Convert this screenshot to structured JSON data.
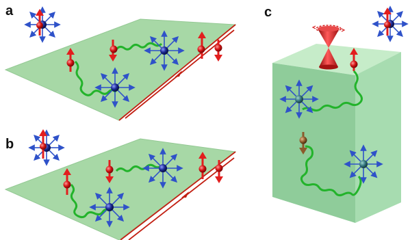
{
  "panels": [
    {
      "id": "a",
      "label": "a"
    },
    {
      "id": "b",
      "label": "b"
    },
    {
      "id": "c",
      "label": "c"
    }
  ],
  "colors": {
    "plane_green": "#a7d8a6",
    "plane_edge": "#8cc38c",
    "edge_line": "#c21f12",
    "spin_red": "#e21e1e",
    "spin_brown": "#8b5a2b",
    "magnetic_atom": "#1e2a8a",
    "arrow_blue": "#2f52c9",
    "wave_green": "#23b32b",
    "cone_red": "#d61f1f",
    "block_front": "#8fcc9a",
    "block_side": "#a7dcb0",
    "block_top": "#c6ecc9"
  },
  "icons": [
    "magnetic-impurity-icon",
    "spin-up-arrow-icon",
    "spin-down-arrow-icon",
    "dirac-cone-icon",
    "edge-channel-arrow-icon"
  ]
}
